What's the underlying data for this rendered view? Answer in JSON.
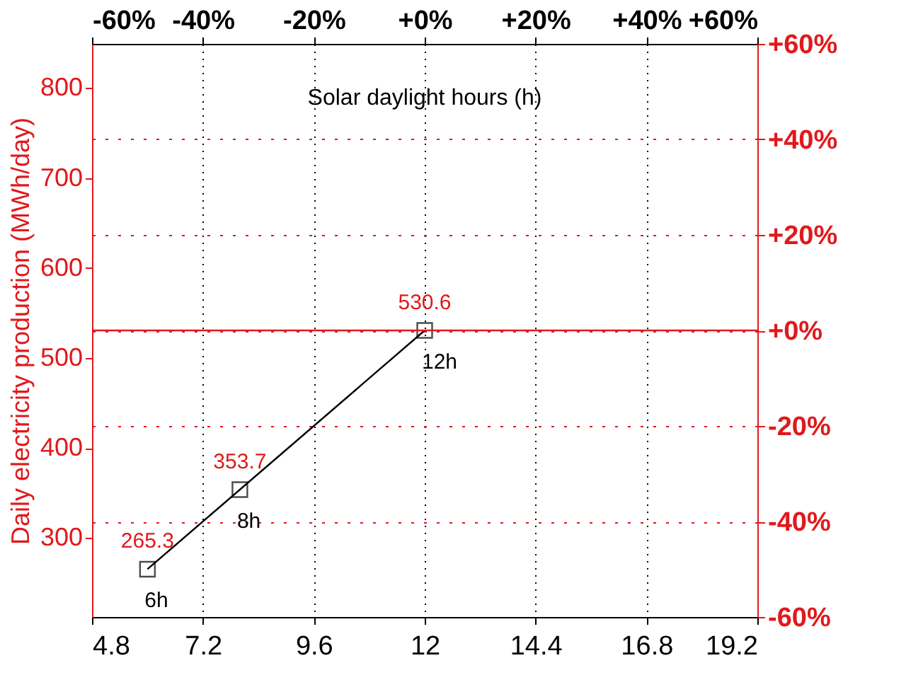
{
  "chart_data": {
    "type": "line",
    "xlabel": "Solar daylight hours (h)",
    "ylabel": "Daily electricity production (MWh/day)",
    "x": [
      6,
      8,
      12
    ],
    "series": [
      {
        "color": "#000000",
        "values": [
          265.3,
          353.7,
          530.6
        ]
      }
    ],
    "xlim": [
      4.8,
      19.2
    ],
    "xticks": [
      4.8,
      7.2,
      9.6,
      12,
      14.4,
      16.8,
      19.2
    ],
    "ylim": [
      212.2,
      849.0
    ],
    "yticks": [
      300,
      400,
      500,
      600,
      700,
      800
    ],
    "x2lim": [
      -60,
      60
    ],
    "x2ticks": [
      {
        "value": -60,
        "label": "-60%"
      },
      {
        "value": -40,
        "label": "-40%"
      },
      {
        "value": -20,
        "label": "-20%"
      },
      {
        "value": 0,
        "label": "+0%"
      },
      {
        "value": 20,
        "label": "+20%"
      },
      {
        "value": 40,
        "label": "+40%"
      },
      {
        "value": 60,
        "label": "+60%"
      }
    ],
    "y2lim": [
      -60,
      60
    ],
    "y2ticks": [
      {
        "value": -60,
        "label": "-60%"
      },
      {
        "value": -40,
        "label": "-40%"
      },
      {
        "value": -20,
        "label": "-20%"
      },
      {
        "value": 0,
        "label": "+0%"
      },
      {
        "value": 20,
        "label": "+20%"
      },
      {
        "value": 40,
        "label": "+40%"
      },
      {
        "value": 60,
        "label": "+60%"
      }
    ],
    "ref_lines": [
      {
        "axis": "y2",
        "value": 0,
        "color": "#e0191c",
        "line_style": "solid"
      }
    ],
    "annotations": [
      {
        "text": "6h",
        "x": 6,
        "y": 265.3
      },
      {
        "text": "8h",
        "x": 8,
        "y": 353.7
      },
      {
        "text": "12h",
        "x": 12,
        "y": 530.6
      }
    ],
    "data_labels": true,
    "marker": "square",
    "line_style": "solid",
    "grid": true
  }
}
